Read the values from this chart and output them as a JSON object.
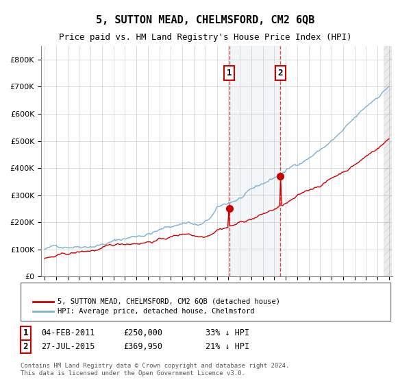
{
  "title": "5, SUTTON MEAD, CHELMSFORD, CM2 6QB",
  "subtitle": "Price paid vs. HM Land Registry's House Price Index (HPI)",
  "legend_line1": "5, SUTTON MEAD, CHELMSFORD, CM2 6QB (detached house)",
  "legend_line2": "HPI: Average price, detached house, Chelmsford",
  "transaction1_date": "04-FEB-2011",
  "transaction1_price": 250000,
  "transaction1_label": "33% ↓ HPI",
  "transaction2_date": "27-JUL-2015",
  "transaction2_price": 369950,
  "transaction2_label": "21% ↓ HPI",
  "footnote": "Contains HM Land Registry data © Crown copyright and database right 2024.\nThis data is licensed under the Open Government Licence v3.0.",
  "hpi_color": "#aac4dd",
  "price_color": "#cc0000",
  "background_color": "#ffffff",
  "grid_color": "#cccccc",
  "ylim": [
    0,
    850000
  ],
  "year_start": 1995,
  "year_end": 2025
}
